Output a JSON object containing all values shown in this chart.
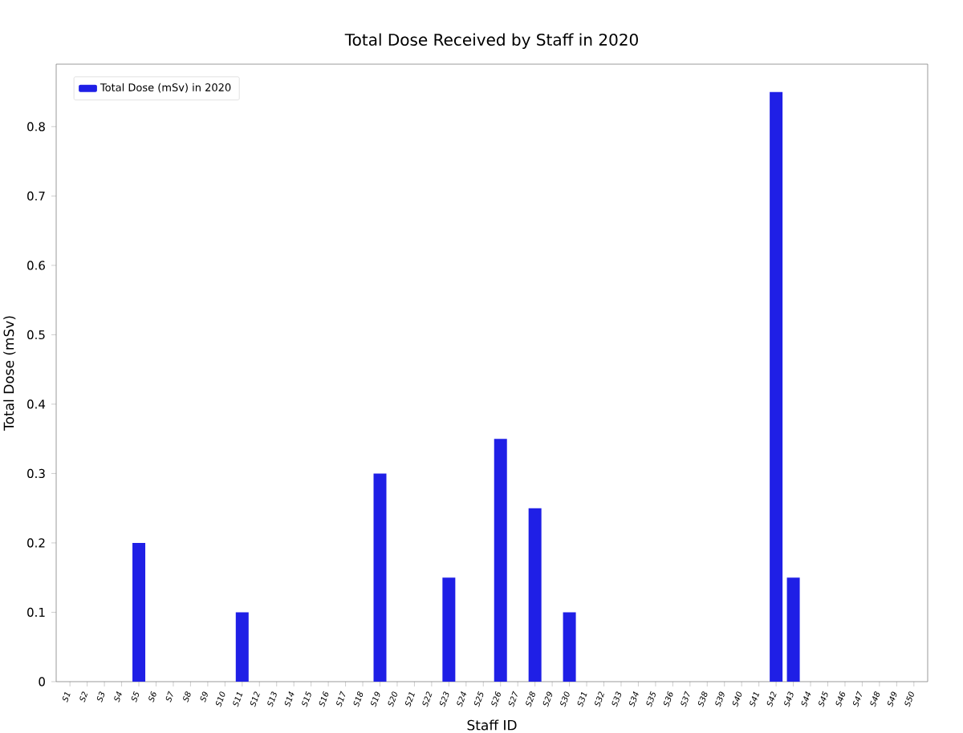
{
  "chart_data": {
    "type": "bar",
    "title": "Total Dose Received by Staff in 2020",
    "xlabel": "Staff ID",
    "ylabel": "Total Dose (mSv)",
    "categories": [
      "S1",
      "S2",
      "S3",
      "S4",
      "S5",
      "S6",
      "S7",
      "S8",
      "S9",
      "S10",
      "S11",
      "S12",
      "S13",
      "S14",
      "S15",
      "S16",
      "S17",
      "S18",
      "S19",
      "S20",
      "S21",
      "S22",
      "S23",
      "S24",
      "S25",
      "S26",
      "S27",
      "S28",
      "S29",
      "S30",
      "S31",
      "S32",
      "S33",
      "S34",
      "S35",
      "S36",
      "S37",
      "S38",
      "S39",
      "S40",
      "S41",
      "S42",
      "S43",
      "S44",
      "S45",
      "S46",
      "S47",
      "S48",
      "S49",
      "S50"
    ],
    "series": [
      {
        "name": "Total Dose (mSv) in 2020",
        "color": "#1f1fe6",
        "values": [
          0,
          0,
          0,
          0,
          0.2,
          0,
          0,
          0,
          0,
          0,
          0.1,
          0,
          0,
          0,
          0,
          0,
          0,
          0,
          0.3,
          0,
          0,
          0,
          0.15,
          0,
          0,
          0.35,
          0,
          0.25,
          0,
          0.1,
          0,
          0,
          0,
          0,
          0,
          0,
          0,
          0,
          0,
          0,
          0,
          0.85,
          0.15,
          0,
          0,
          0,
          0,
          0,
          0,
          0
        ]
      }
    ],
    "ylim": [
      0,
      0.89
    ],
    "yticks": [
      0,
      0.1,
      0.2,
      0.3,
      0.4,
      0.5,
      0.6,
      0.7,
      0.8
    ],
    "legend": "top left",
    "grid": false
  }
}
